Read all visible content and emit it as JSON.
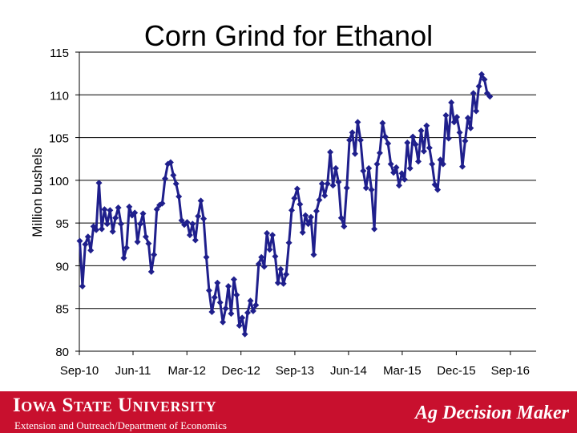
{
  "footer": {
    "university": "Iowa State University",
    "department": "Extension and Outreach/Department of Economics",
    "brand": "Ag Decision Maker"
  },
  "colors": {
    "series": "#1f1f8c",
    "footer_bg": "#c8102e",
    "gridline": "#000000"
  },
  "chart_data": {
    "type": "line",
    "title": "Corn Grind for Ethanol",
    "xlabel": "",
    "ylabel": "Million bushels",
    "ylim": [
      80,
      115
    ],
    "yticks": [
      80,
      85,
      90,
      95,
      100,
      105,
      110,
      115
    ],
    "xlim": [
      "2010-09-01",
      "2017-01-10"
    ],
    "xtick_labels": [
      "Sep-10",
      "Jun-11",
      "Mar-12",
      "Dec-12",
      "Sep-13",
      "Jun-14",
      "Mar-15",
      "Dec-15",
      "Sep-16"
    ],
    "xtick_dates": [
      "2010-09-01",
      "2011-06-01",
      "2012-03-01",
      "2012-12-01",
      "2013-09-01",
      "2014-06-01",
      "2015-03-01",
      "2015-12-01",
      "2016-09-01"
    ],
    "grid": "horizontal",
    "legend": "none",
    "marker": "diamond",
    "series": [
      {
        "values": [
          [
            "2010-09-03",
            92.9
          ],
          [
            "2010-09-17",
            87.6
          ],
          [
            "2010-10-01",
            92.5
          ],
          [
            "2010-10-15",
            93.4
          ],
          [
            "2010-10-29",
            91.8
          ],
          [
            "2010-11-12",
            94.6
          ],
          [
            "2010-11-26",
            94.2
          ],
          [
            "2010-12-10",
            99.7
          ],
          [
            "2010-12-24",
            94.3
          ],
          [
            "2011-01-07",
            96.6
          ],
          [
            "2011-01-21",
            94.9
          ],
          [
            "2011-02-04",
            96.5
          ],
          [
            "2011-02-18",
            94.0
          ],
          [
            "2011-03-04",
            95.6
          ],
          [
            "2011-03-18",
            96.8
          ],
          [
            "2011-04-01",
            94.9
          ],
          [
            "2011-04-15",
            90.9
          ],
          [
            "2011-04-29",
            92.1
          ],
          [
            "2011-05-13",
            96.9
          ],
          [
            "2011-05-27",
            95.9
          ],
          [
            "2011-06-10",
            96.2
          ],
          [
            "2011-06-24",
            92.8
          ],
          [
            "2011-07-08",
            94.9
          ],
          [
            "2011-07-22",
            96.1
          ],
          [
            "2011-08-05",
            93.4
          ],
          [
            "2011-08-19",
            92.6
          ],
          [
            "2011-09-02",
            89.3
          ],
          [
            "2011-09-16",
            91.3
          ],
          [
            "2011-09-30",
            96.6
          ],
          [
            "2011-10-14",
            97.1
          ],
          [
            "2011-10-28",
            97.3
          ],
          [
            "2011-11-11",
            100.2
          ],
          [
            "2011-11-25",
            101.9
          ],
          [
            "2011-12-09",
            102.1
          ],
          [
            "2011-12-23",
            100.6
          ],
          [
            "2012-01-06",
            99.6
          ],
          [
            "2012-01-20",
            98.1
          ],
          [
            "2012-02-03",
            95.3
          ],
          [
            "2012-02-17",
            94.8
          ],
          [
            "2012-03-02",
            95.1
          ],
          [
            "2012-03-16",
            93.6
          ],
          [
            "2012-03-30",
            94.9
          ],
          [
            "2012-04-13",
            93.0
          ],
          [
            "2012-04-27",
            95.8
          ],
          [
            "2012-05-11",
            97.6
          ],
          [
            "2012-05-25",
            95.5
          ],
          [
            "2012-06-08",
            91.0
          ],
          [
            "2012-06-22",
            87.1
          ],
          [
            "2012-07-06",
            84.6
          ],
          [
            "2012-07-20",
            86.3
          ],
          [
            "2012-08-03",
            88.0
          ],
          [
            "2012-08-17",
            85.7
          ],
          [
            "2012-08-31",
            83.4
          ],
          [
            "2012-09-14",
            85.0
          ],
          [
            "2012-09-28",
            87.6
          ],
          [
            "2012-10-12",
            84.4
          ],
          [
            "2012-10-26",
            88.4
          ],
          [
            "2012-11-09",
            86.6
          ],
          [
            "2012-11-23",
            83.0
          ],
          [
            "2012-12-07",
            83.9
          ],
          [
            "2012-12-21",
            82.0
          ],
          [
            "2013-01-04",
            84.5
          ],
          [
            "2013-01-18",
            85.9
          ],
          [
            "2013-02-01",
            84.7
          ],
          [
            "2013-02-15",
            85.4
          ],
          [
            "2013-03-01",
            90.2
          ],
          [
            "2013-03-15",
            91.0
          ],
          [
            "2013-03-29",
            89.9
          ],
          [
            "2013-04-12",
            93.8
          ],
          [
            "2013-04-26",
            91.9
          ],
          [
            "2013-05-10",
            93.6
          ],
          [
            "2013-05-24",
            91.1
          ],
          [
            "2013-06-07",
            88.0
          ],
          [
            "2013-06-21",
            89.6
          ],
          [
            "2013-07-05",
            87.9
          ],
          [
            "2013-07-19",
            89.0
          ],
          [
            "2013-08-02",
            92.7
          ],
          [
            "2013-08-16",
            96.5
          ],
          [
            "2013-08-30",
            97.9
          ],
          [
            "2013-09-13",
            99.0
          ],
          [
            "2013-09-27",
            97.2
          ],
          [
            "2013-10-11",
            93.9
          ],
          [
            "2013-10-25",
            95.9
          ],
          [
            "2013-11-08",
            94.9
          ],
          [
            "2013-11-22",
            95.7
          ],
          [
            "2013-12-06",
            91.3
          ],
          [
            "2013-12-20",
            96.4
          ],
          [
            "2014-01-03",
            97.7
          ],
          [
            "2014-01-17",
            99.6
          ],
          [
            "2014-01-31",
            98.2
          ],
          [
            "2014-02-14",
            99.6
          ],
          [
            "2014-02-28",
            103.3
          ],
          [
            "2014-03-14",
            99.4
          ],
          [
            "2014-03-28",
            101.4
          ],
          [
            "2014-04-11",
            99.8
          ],
          [
            "2014-04-25",
            95.6
          ],
          [
            "2014-05-09",
            94.6
          ],
          [
            "2014-05-23",
            99.1
          ],
          [
            "2014-06-06",
            104.7
          ],
          [
            "2014-06-20",
            105.6
          ],
          [
            "2014-07-04",
            103.1
          ],
          [
            "2014-07-18",
            106.8
          ],
          [
            "2014-08-01",
            104.7
          ],
          [
            "2014-08-15",
            101.1
          ],
          [
            "2014-08-29",
            99.1
          ],
          [
            "2014-09-12",
            101.4
          ],
          [
            "2014-09-26",
            98.9
          ],
          [
            "2014-10-10",
            94.3
          ],
          [
            "2014-10-24",
            101.9
          ],
          [
            "2014-11-07",
            103.2
          ],
          [
            "2014-11-21",
            106.7
          ],
          [
            "2014-12-05",
            105.1
          ],
          [
            "2014-12-19",
            104.3
          ],
          [
            "2015-01-02",
            101.9
          ],
          [
            "2015-01-16",
            100.9
          ],
          [
            "2015-01-30",
            101.5
          ],
          [
            "2015-02-13",
            99.4
          ],
          [
            "2015-02-27",
            100.8
          ],
          [
            "2015-03-13",
            100.1
          ],
          [
            "2015-03-27",
            104.4
          ],
          [
            "2015-04-10",
            101.4
          ],
          [
            "2015-04-24",
            105.1
          ],
          [
            "2015-05-08",
            104.2
          ],
          [
            "2015-05-22",
            102.2
          ],
          [
            "2015-06-05",
            105.8
          ],
          [
            "2015-06-19",
            103.4
          ],
          [
            "2015-07-03",
            106.4
          ],
          [
            "2015-07-17",
            103.8
          ],
          [
            "2015-07-31",
            101.9
          ],
          [
            "2015-08-14",
            99.5
          ],
          [
            "2015-08-28",
            98.9
          ],
          [
            "2015-09-11",
            102.4
          ],
          [
            "2015-09-25",
            101.9
          ],
          [
            "2015-10-09",
            107.6
          ],
          [
            "2015-10-23",
            104.9
          ],
          [
            "2015-11-06",
            109.1
          ],
          [
            "2015-11-20",
            106.8
          ],
          [
            "2015-12-04",
            107.4
          ],
          [
            "2015-12-18",
            105.6
          ],
          [
            "2016-01-01",
            101.6
          ],
          [
            "2016-01-15",
            104.6
          ],
          [
            "2016-01-29",
            107.3
          ],
          [
            "2016-02-12",
            106.1
          ],
          [
            "2016-02-26",
            110.2
          ],
          [
            "2016-03-11",
            108.1
          ],
          [
            "2016-03-25",
            111.0
          ],
          [
            "2016-04-08",
            112.4
          ],
          [
            "2016-04-22",
            111.8
          ],
          [
            "2016-05-06",
            110.2
          ],
          [
            "2016-05-20",
            109.8
          ]
        ]
      }
    ]
  }
}
